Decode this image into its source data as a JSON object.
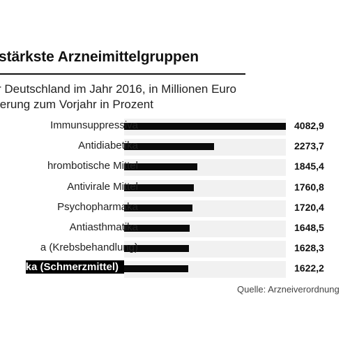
{
  "chart_data": {
    "type": "bar",
    "orientation": "horizontal",
    "title": "stärkste Arzneimittelgruppen",
    "subtitle_lines": [
      "r Deutschland im Jahr 2016, in Millionen Euro",
      "lerung zum Vorjahr in Prozent"
    ],
    "categories": [
      "Immunsuppressiva",
      "Antidiabetika",
      "hrombotische Mittel",
      "Antivirale Mittel",
      "Psychopharmaka",
      "Antiasthmatika",
      "a (Krebsbehandlung)",
      "ka (Schmerzmittel)"
    ],
    "values": [
      4082.9,
      2273.7,
      1845.4,
      1760.8,
      1720.4,
      1648.5,
      1628.3,
      1622.2
    ],
    "value_labels": [
      "4082,9",
      "2273,7",
      "1845,4",
      "1760,8",
      "1720,4",
      "1648,5",
      "1628,3",
      "1622,2"
    ],
    "highlighted_category": "ka (Schmerzmittel)",
    "xlim": [
      0,
      4082.9
    ],
    "grid": false,
    "legend": "none",
    "bar_color": "#0a0a0a",
    "row_background": "#f1f1f1",
    "highlight_background": "#000000",
    "source": "Quelle: Arzneiverordnung"
  }
}
